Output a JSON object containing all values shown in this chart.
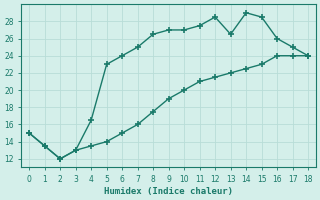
{
  "line1_x": [
    0,
    1,
    2,
    3,
    4,
    5,
    6,
    7,
    8,
    9,
    10,
    11,
    12,
    13,
    14,
    15,
    16,
    17,
    18
  ],
  "line1_y": [
    15,
    13.5,
    12,
    13,
    16.5,
    23,
    24,
    25,
    26.5,
    27,
    27,
    27.5,
    28.5,
    26.5,
    29,
    28.5,
    26,
    25,
    24
  ],
  "line2_x": [
    0,
    1,
    2,
    3,
    4,
    5,
    6,
    7,
    8,
    9,
    10,
    11,
    12,
    13,
    14,
    15,
    16,
    17,
    18
  ],
  "line2_y": [
    15,
    13.5,
    12,
    13,
    13.5,
    14,
    15,
    16,
    17.5,
    19,
    20,
    21,
    21.5,
    22,
    22.5,
    23,
    24,
    24,
    24
  ],
  "line_color": "#1a7a6a",
  "bg_color": "#d4efea",
  "grid_color": "#b8ddd7",
  "xlabel": "Humidex (Indice chaleur)",
  "xlim": [
    -0.5,
    18.5
  ],
  "ylim": [
    11,
    30
  ],
  "yticks": [
    12,
    14,
    16,
    18,
    20,
    22,
    24,
    26,
    28
  ],
  "xticks": [
    0,
    1,
    2,
    3,
    4,
    5,
    6,
    7,
    8,
    9,
    10,
    11,
    12,
    13,
    14,
    15,
    16,
    17,
    18
  ]
}
